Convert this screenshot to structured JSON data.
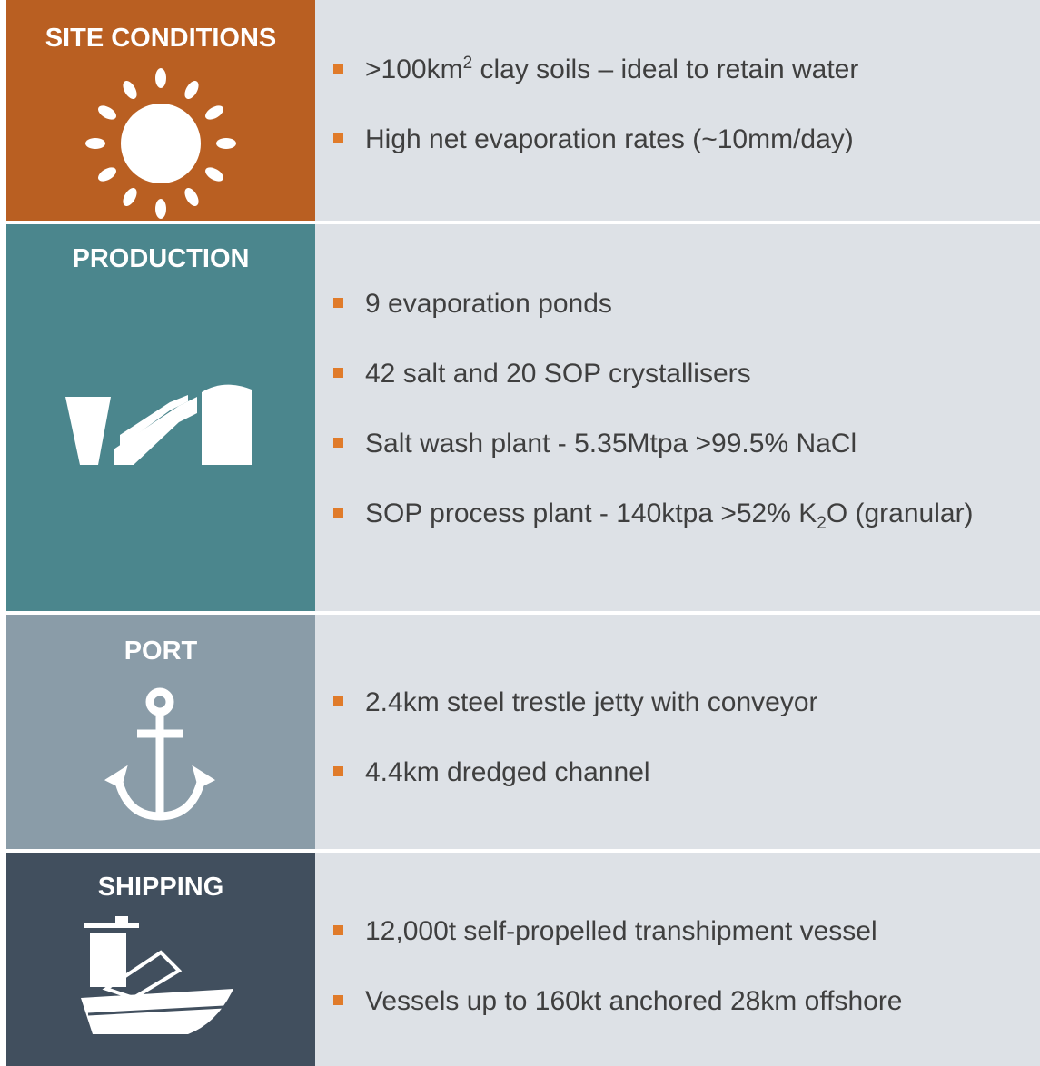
{
  "sections": [
    {
      "title": "SITE CONDITIONS",
      "items": [
        [
          {
            "text": ">100km"
          },
          {
            "sup": "2"
          },
          {
            "text": " clay soils – ideal to retain water"
          }
        ],
        [
          {
            "text": "High net evaporation rates (~10mm/day)"
          }
        ]
      ]
    },
    {
      "title": "PRODUCTION",
      "items": [
        [
          {
            "text": "9 evaporation ponds"
          }
        ],
        [
          {
            "text": "42 salt and 20 SOP crystallisers"
          }
        ],
        [
          {
            "text": "Salt wash plant - 5.35Mtpa >99.5% NaCl"
          }
        ],
        [
          {
            "text": "SOP process plant - 140ktpa >52% K"
          },
          {
            "sub": "2"
          },
          {
            "text": "O (granular)"
          }
        ]
      ]
    },
    {
      "title": "PORT",
      "items": [
        [
          {
            "text": "2.4km steel trestle jetty with conveyor"
          }
        ],
        [
          {
            "text": "4.4km dredged channel"
          }
        ]
      ]
    },
    {
      "title": "SHIPPING",
      "items": [
        [
          {
            "text": "12,000t self-propelled transhipment vessel"
          }
        ],
        [
          {
            "text": "Vessels up to 160kt anchored 28km offshore"
          }
        ]
      ]
    }
  ]
}
